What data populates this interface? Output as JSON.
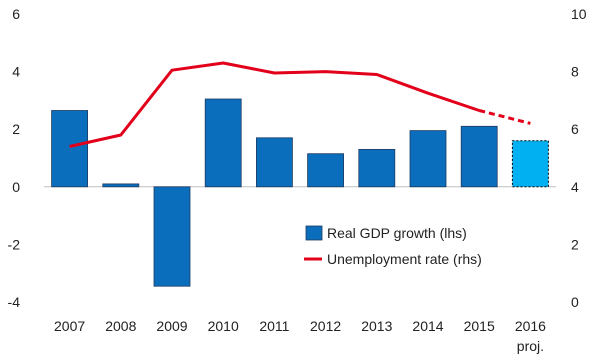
{
  "chart_data": {
    "type": "bar",
    "categories": [
      "2007",
      "2008",
      "2009",
      "2010",
      "2011",
      "2012",
      "2013",
      "2014",
      "2015",
      "2016"
    ],
    "category_sublabels": [
      "",
      "",
      "",
      "",
      "",
      "",
      "",
      "",
      "",
      "proj."
    ],
    "series": [
      {
        "name": "Real GDP growth (lhs)",
        "type": "bar",
        "axis": "left",
        "color": "#0a6ebd",
        "projection_color": "#00b0f0",
        "values": [
          2.65,
          0.1,
          -3.45,
          3.05,
          1.7,
          1.15,
          1.3,
          1.95,
          2.1,
          1.6
        ],
        "projected": [
          false,
          false,
          false,
          false,
          false,
          false,
          false,
          false,
          false,
          true
        ]
      },
      {
        "name": "Unemployment rate (rhs)",
        "type": "line",
        "axis": "right",
        "color": "#e2001a",
        "values": [
          5.4,
          5.8,
          8.05,
          8.3,
          7.95,
          8.0,
          7.9,
          7.25,
          6.65,
          6.2
        ],
        "projected": [
          false,
          false,
          false,
          false,
          false,
          false,
          false,
          false,
          false,
          true
        ]
      }
    ],
    "y_left": {
      "ylim": [
        -4,
        6
      ],
      "ticks": [
        -4,
        -2,
        0,
        2,
        4,
        6
      ]
    },
    "y_right": {
      "ylim": [
        0,
        10
      ],
      "ticks": [
        0,
        2,
        4,
        6,
        8,
        10
      ]
    },
    "grid": false,
    "legend": "center-right"
  }
}
